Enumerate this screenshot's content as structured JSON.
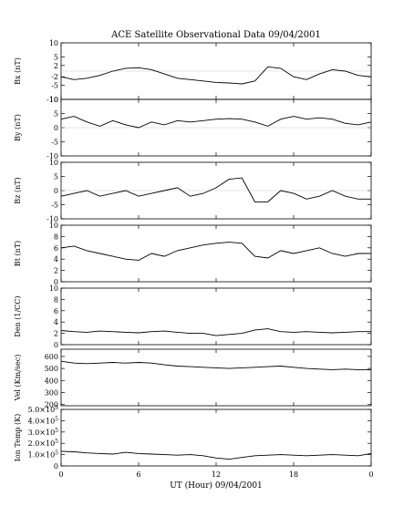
{
  "chart_data": [
    {
      "type": "line",
      "title": "ACE Satellite Observational Data   09/04/2001",
      "ylabel": "Bx (nT)",
      "ylim": [
        -10,
        10
      ],
      "yticks": [
        "10",
        "5",
        "2",
        "-2",
        "-5",
        "-10"
      ],
      "ytick_values": [
        10,
        5,
        2,
        -2,
        -5,
        -10
      ],
      "x": [
        0,
        1,
        2,
        3,
        4,
        5,
        6,
        7,
        8,
        9,
        10,
        11,
        12,
        13,
        14,
        15,
        16,
        17,
        18,
        19,
        20,
        21,
        22,
        23,
        24
      ],
      "values": [
        -2,
        -3,
        -2.5,
        -1.5,
        0,
        1,
        1.2,
        0.5,
        -1,
        -2.5,
        -3,
        -3.5,
        -4,
        -4.2,
        -4.5,
        -3.5,
        1.5,
        1,
        -2,
        -3,
        -1,
        0.5,
        0,
        -1.5,
        -2
      ]
    },
    {
      "type": "line",
      "ylabel": "By (nT)",
      "ylim": [
        -10,
        10
      ],
      "yticks": [
        "10",
        "5",
        "0",
        "-5",
        "-10"
      ],
      "ytick_values": [
        10,
        5,
        0,
        -5,
        -10
      ],
      "x": [
        0,
        1,
        2,
        3,
        4,
        5,
        6,
        7,
        8,
        9,
        10,
        11,
        12,
        13,
        14,
        15,
        16,
        17,
        18,
        19,
        20,
        21,
        22,
        23,
        24
      ],
      "values": [
        3,
        4,
        2,
        0.5,
        2.5,
        1,
        0,
        2,
        1,
        2.5,
        2,
        2.5,
        3,
        3.2,
        3,
        2,
        0.5,
        3,
        4,
        3,
        3.5,
        3,
        1.5,
        1,
        2
      ]
    },
    {
      "type": "line",
      "ylabel": "Bz (nT)",
      "ylim": [
        -10,
        10
      ],
      "yticks": [
        "10",
        "5",
        "0",
        "-5",
        "-10"
      ],
      "ytick_values": [
        10,
        5,
        0,
        -5,
        -10
      ],
      "x": [
        0,
        1,
        2,
        3,
        4,
        5,
        6,
        7,
        8,
        9,
        10,
        11,
        12,
        13,
        14,
        15,
        16,
        17,
        18,
        19,
        20,
        21,
        22,
        23,
        24
      ],
      "values": [
        -2,
        -1,
        0,
        -2,
        -1,
        0,
        -2,
        -1,
        0,
        1,
        -2,
        -1,
        1,
        4,
        4.5,
        -4,
        -4,
        0,
        -1,
        -3,
        -2,
        0,
        -2,
        -3,
        -3
      ]
    },
    {
      "type": "line",
      "ylabel": "Bt (nT)",
      "ylim": [
        0,
        10
      ],
      "yticks": [
        "10",
        "8",
        "6",
        "4",
        "2",
        "0"
      ],
      "ytick_values": [
        10,
        8,
        6,
        4,
        2,
        0
      ],
      "x": [
        0,
        1,
        2,
        3,
        4,
        5,
        6,
        7,
        8,
        9,
        10,
        11,
        12,
        13,
        14,
        15,
        16,
        17,
        18,
        19,
        20,
        21,
        22,
        23,
        24
      ],
      "values": [
        6,
        6.3,
        5.5,
        5,
        4.5,
        4,
        3.8,
        5,
        4.5,
        5.5,
        6,
        6.5,
        6.8,
        7,
        6.8,
        4.5,
        4.2,
        5.5,
        5,
        5.5,
        6,
        5,
        4.5,
        5,
        5
      ]
    },
    {
      "type": "line",
      "ylabel": "Den (1/CC)",
      "ylim": [
        0,
        10
      ],
      "yticks": [
        "10",
        "8",
        "6",
        "4",
        "2",
        "0"
      ],
      "ytick_values": [
        10,
        8,
        6,
        4,
        2,
        0
      ],
      "x": [
        0,
        1,
        2,
        3,
        4,
        5,
        6,
        7,
        8,
        9,
        10,
        11,
        12,
        13,
        14,
        15,
        16,
        17,
        18,
        19,
        20,
        21,
        22,
        23,
        24
      ],
      "values": [
        2.5,
        2.3,
        2.2,
        2.4,
        2.3,
        2.2,
        2.1,
        2.3,
        2.4,
        2.2,
        2,
        2,
        1.6,
        1.8,
        2,
        2.6,
        2.8,
        2.3,
        2.2,
        2.3,
        2.2,
        2.1,
        2.2,
        2.3,
        2.3
      ]
    },
    {
      "type": "line",
      "ylabel": "Vel (Km/sec)",
      "ylim": [
        190,
        660
      ],
      "yticks": [
        "600",
        "500",
        "400",
        "300",
        "200"
      ],
      "ytick_values": [
        600,
        500,
        400,
        300,
        200
      ],
      "x": [
        0,
        1,
        2,
        3,
        4,
        5,
        6,
        7,
        8,
        9,
        10,
        11,
        12,
        13,
        14,
        15,
        16,
        17,
        18,
        19,
        20,
        21,
        22,
        23,
        24
      ],
      "values": [
        560,
        545,
        540,
        545,
        550,
        545,
        550,
        545,
        530,
        520,
        515,
        510,
        505,
        500,
        505,
        510,
        515,
        520,
        510,
        500,
        495,
        490,
        495,
        490,
        490
      ]
    },
    {
      "type": "line",
      "ylabel": "Ion Temp (K)",
      "ylim": [
        0,
        500000
      ],
      "yticks": [
        "5.0×10",
        "4.0×10",
        "3.0×10",
        "2.0×10",
        "1.0×10",
        "0"
      ],
      "ytick_exponent": "5",
      "ytick_values": [
        500000,
        400000,
        300000,
        200000,
        100000,
        0
      ],
      "x": [
        0,
        1,
        2,
        3,
        4,
        5,
        6,
        7,
        8,
        9,
        10,
        11,
        12,
        13,
        14,
        15,
        16,
        17,
        18,
        19,
        20,
        21,
        22,
        23,
        24
      ],
      "values": [
        130000,
        125000,
        115000,
        110000,
        105000,
        120000,
        110000,
        105000,
        100000,
        95000,
        100000,
        90000,
        70000,
        60000,
        75000,
        90000,
        95000,
        100000,
        95000,
        90000,
        95000,
        100000,
        95000,
        90000,
        110000
      ],
      "xticks": [
        "0",
        "6",
        "12",
        "18",
        "0"
      ],
      "xtick_values": [
        0,
        6,
        12,
        18,
        24
      ],
      "xlabel": "UT (Hour)   09/04/2001"
    }
  ]
}
